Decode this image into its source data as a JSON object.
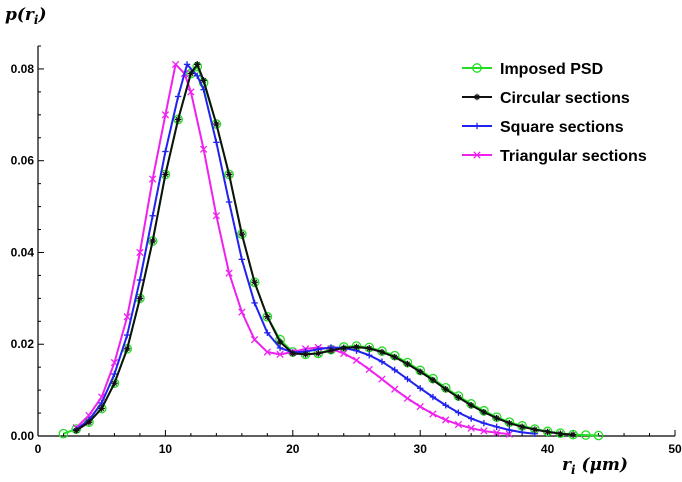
{
  "chart_data": {
    "type": "line",
    "ylabel": "p(r_i)",
    "xlabel": "r_i (μm)",
    "xlim": [
      0,
      50
    ],
    "ylim": [
      0,
      0.085
    ],
    "xticks": [
      "0",
      "10",
      "20",
      "30",
      "40",
      "50"
    ],
    "yticks": [
      "0.00",
      "0.02",
      "0.04",
      "0.06",
      "0.08"
    ],
    "grid": false,
    "legend_position": "top-right",
    "series": [
      {
        "name": "Imposed PSD",
        "color": "#22dd22",
        "marker": "circle",
        "points": [
          [
            2,
            0.0005
          ],
          [
            3,
            0.0015
          ],
          [
            4,
            0.003
          ],
          [
            5,
            0.006
          ],
          [
            6,
            0.0115
          ],
          [
            7,
            0.019
          ],
          [
            8,
            0.03
          ],
          [
            9,
            0.0425
          ],
          [
            10,
            0.057
          ],
          [
            11,
            0.069
          ],
          [
            12,
            0.079
          ],
          [
            12.5,
            0.0805
          ],
          [
            13,
            0.077
          ],
          [
            14,
            0.068
          ],
          [
            15,
            0.057
          ],
          [
            16,
            0.044
          ],
          [
            17,
            0.0335
          ],
          [
            18,
            0.026
          ],
          [
            19,
            0.021
          ],
          [
            20,
            0.0183
          ],
          [
            21,
            0.0178
          ],
          [
            22,
            0.018
          ],
          [
            23,
            0.0188
          ],
          [
            24,
            0.0194
          ],
          [
            25,
            0.0196
          ],
          [
            26,
            0.0193
          ],
          [
            27,
            0.0185
          ],
          [
            28,
            0.0175
          ],
          [
            29,
            0.016
          ],
          [
            30,
            0.0143
          ],
          [
            31,
            0.0125
          ],
          [
            32,
            0.0105
          ],
          [
            33,
            0.0087
          ],
          [
            34,
            0.007
          ],
          [
            35,
            0.0055
          ],
          [
            36,
            0.0041
          ],
          [
            37,
            0.003
          ],
          [
            38,
            0.0022
          ],
          [
            39,
            0.0015
          ],
          [
            40,
            0.001
          ],
          [
            41,
            0.0006
          ],
          [
            42,
            0.0003
          ],
          [
            43,
            0.0002
          ],
          [
            44,
            0.0001
          ]
        ]
      },
      {
        "name": "Circular sections",
        "color": "#111111",
        "marker": "star",
        "points": [
          [
            3,
            0.0012
          ],
          [
            4,
            0.003
          ],
          [
            5,
            0.006
          ],
          [
            6,
            0.0115
          ],
          [
            7,
            0.019
          ],
          [
            8,
            0.03
          ],
          [
            9,
            0.0425
          ],
          [
            10,
            0.057
          ],
          [
            11,
            0.069
          ],
          [
            12,
            0.079
          ],
          [
            12.5,
            0.081
          ],
          [
            13,
            0.0775
          ],
          [
            14,
            0.068
          ],
          [
            15,
            0.057
          ],
          [
            16,
            0.044
          ],
          [
            17,
            0.0335
          ],
          [
            18,
            0.026
          ],
          [
            19,
            0.0205
          ],
          [
            20,
            0.018
          ],
          [
            21,
            0.0178
          ],
          [
            22,
            0.018
          ],
          [
            23,
            0.0186
          ],
          [
            24,
            0.0192
          ],
          [
            25,
            0.0194
          ],
          [
            26,
            0.0191
          ],
          [
            27,
            0.0183
          ],
          [
            28,
            0.0172
          ],
          [
            29,
            0.0157
          ],
          [
            30,
            0.014
          ],
          [
            31,
            0.0122
          ],
          [
            32,
            0.0102
          ],
          [
            33,
            0.0084
          ],
          [
            34,
            0.0067
          ],
          [
            35,
            0.0052
          ],
          [
            36,
            0.0039
          ],
          [
            37,
            0.0028
          ],
          [
            38,
            0.002
          ],
          [
            39,
            0.0014
          ],
          [
            40,
            0.0009
          ],
          [
            41,
            0.0005
          ],
          [
            42,
            0.0003
          ]
        ]
      },
      {
        "name": "Square sections",
        "color": "#2222ee",
        "marker": "plus",
        "points": [
          [
            3,
            0.0014
          ],
          [
            4,
            0.0035
          ],
          [
            5,
            0.0072
          ],
          [
            6,
            0.0135
          ],
          [
            7,
            0.022
          ],
          [
            8,
            0.034
          ],
          [
            9,
            0.048
          ],
          [
            10,
            0.062
          ],
          [
            11,
            0.074
          ],
          [
            11.7,
            0.081
          ],
          [
            12.5,
            0.0785
          ],
          [
            13,
            0.0755
          ],
          [
            14,
            0.064
          ],
          [
            15,
            0.051
          ],
          [
            16,
            0.0385
          ],
          [
            17,
            0.029
          ],
          [
            18,
            0.0225
          ],
          [
            19,
            0.0192
          ],
          [
            20,
            0.0182
          ],
          [
            21,
            0.0184
          ],
          [
            22,
            0.0189
          ],
          [
            23,
            0.0193
          ],
          [
            24,
            0.0192
          ],
          [
            25,
            0.0186
          ],
          [
            26,
            0.0176
          ],
          [
            27,
            0.0162
          ],
          [
            28,
            0.0144
          ],
          [
            29,
            0.0124
          ],
          [
            30,
            0.0104
          ],
          [
            31,
            0.0085
          ],
          [
            32,
            0.0067
          ],
          [
            33,
            0.0051
          ],
          [
            34,
            0.0038
          ],
          [
            35,
            0.0028
          ],
          [
            36,
            0.002
          ],
          [
            37,
            0.0013
          ],
          [
            38,
            0.0008
          ],
          [
            39,
            0.0005
          ]
        ]
      },
      {
        "name": "Triangular sections",
        "color": "#ee22ee",
        "marker": "x",
        "points": [
          [
            3,
            0.0018
          ],
          [
            4,
            0.0045
          ],
          [
            5,
            0.0085
          ],
          [
            6,
            0.016
          ],
          [
            7,
            0.026
          ],
          [
            8,
            0.04
          ],
          [
            9,
            0.056
          ],
          [
            10,
            0.07
          ],
          [
            10.8,
            0.081
          ],
          [
            11.5,
            0.079
          ],
          [
            12,
            0.075
          ],
          [
            13,
            0.0625
          ],
          [
            14,
            0.048
          ],
          [
            15,
            0.0355
          ],
          [
            16,
            0.027
          ],
          [
            17,
            0.021
          ],
          [
            18,
            0.0183
          ],
          [
            19,
            0.0178
          ],
          [
            20,
            0.0183
          ],
          [
            21,
            0.019
          ],
          [
            22,
            0.0193
          ],
          [
            23,
            0.019
          ],
          [
            24,
            0.018
          ],
          [
            25,
            0.0165
          ],
          [
            26,
            0.0145
          ],
          [
            27,
            0.0124
          ],
          [
            28,
            0.0102
          ],
          [
            29,
            0.0082
          ],
          [
            30,
            0.0064
          ],
          [
            31,
            0.0048
          ],
          [
            32,
            0.0035
          ],
          [
            33,
            0.0025
          ],
          [
            34,
            0.0017
          ],
          [
            35,
            0.0011
          ],
          [
            36,
            0.0007
          ],
          [
            37,
            0.0004
          ]
        ]
      }
    ]
  }
}
